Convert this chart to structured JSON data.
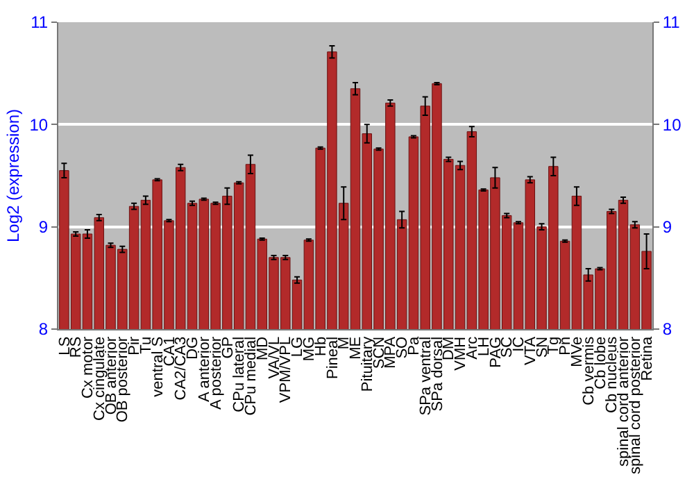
{
  "chart_data": {
    "type": "bar",
    "ylabel": "Log2 (expression)",
    "categories": [
      "LS",
      "RS",
      "Cx motor",
      "Cx cingulate",
      "OB anterior",
      "OB posterior",
      "Pir",
      "Tu",
      "ventral S",
      "CA1",
      "CA2/CA3",
      "DG",
      "A anterior",
      "A posterior",
      "GP",
      "CPu lateral",
      "CPu medial",
      "MD",
      "VA/VL",
      "VPM/VPL",
      "LG",
      "MG",
      "Hb",
      "Pineal",
      "M",
      "ME",
      "Pituitary",
      "SCN",
      "MPA",
      "SO",
      "Pa",
      "SPa ventral",
      "SPa dorsal",
      "DM",
      "VMH",
      "Arc",
      "LH",
      "PAG",
      "SC",
      "IC",
      "VTA",
      "SN",
      "Tg",
      "Pn",
      "MVe",
      "Cb vermis",
      "Cb lobe",
      "Cb nucleus",
      "spinal cord anterior",
      "spinal cord posterior",
      "Retina"
    ],
    "values": [
      9.55,
      8.93,
      8.93,
      9.09,
      8.82,
      8.78,
      9.2,
      9.26,
      9.46,
      9.06,
      9.58,
      9.23,
      9.27,
      9.23,
      9.3,
      9.43,
      9.61,
      8.88,
      8.7,
      8.7,
      8.48,
      8.87,
      9.77,
      10.71,
      9.23,
      10.35,
      9.91,
      9.76,
      10.21,
      9.07,
      9.88,
      10.18,
      10.4,
      9.66,
      9.6,
      9.93,
      9.36,
      9.48,
      9.11,
      9.04,
      9.46,
      9.0,
      9.59,
      8.86,
      9.3,
      8.53,
      8.59,
      9.15,
      9.26,
      9.02,
      8.76
    ],
    "errors": [
      0.07,
      0.02,
      0.04,
      0.03,
      0.02,
      0.03,
      0.03,
      0.04,
      0.01,
      0.01,
      0.03,
      0.02,
      0.01,
      0.01,
      0.08,
      0.01,
      0.09,
      0.01,
      0.02,
      0.02,
      0.03,
      0.01,
      0.01,
      0.06,
      0.16,
      0.06,
      0.09,
      0.01,
      0.03,
      0.08,
      0.01,
      0.09,
      0.01,
      0.02,
      0.04,
      0.05,
      0.01,
      0.1,
      0.02,
      0.01,
      0.03,
      0.03,
      0.09,
      0.01,
      0.09,
      0.06,
      0.01,
      0.02,
      0.03,
      0.03,
      0.17
    ],
    "color": "#b22a2a",
    "ylim": [
      8,
      11
    ],
    "yticks": [
      8,
      9,
      10,
      11
    ],
    "y2lim": [
      8,
      11
    ],
    "y2ticks": [
      8,
      9,
      10,
      11
    ],
    "grid": "y"
  }
}
